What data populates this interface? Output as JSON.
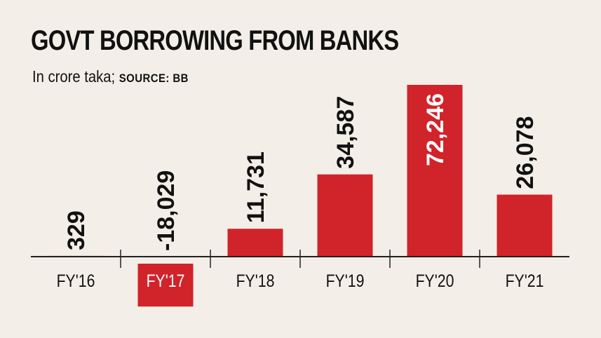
{
  "chart_data": {
    "type": "bar",
    "title": "GOVT BORROWING FROM BANKS",
    "subtitle": "In crore taka;",
    "source": "SOURCE: BB",
    "categories": [
      "FY'16",
      "FY'17",
      "FY'18",
      "FY'19",
      "FY'20",
      "FY'21"
    ],
    "values": [
      329,
      -18029,
      11731,
      34587,
      72246,
      26078
    ],
    "value_labels": [
      "329",
      "-18,029",
      "11,731",
      "34,587",
      "72,246",
      "26,078"
    ],
    "colors": {
      "bar": "#d1232a",
      "axis": "#222222",
      "text": "#111111",
      "inner_label": "#ffffff"
    }
  }
}
